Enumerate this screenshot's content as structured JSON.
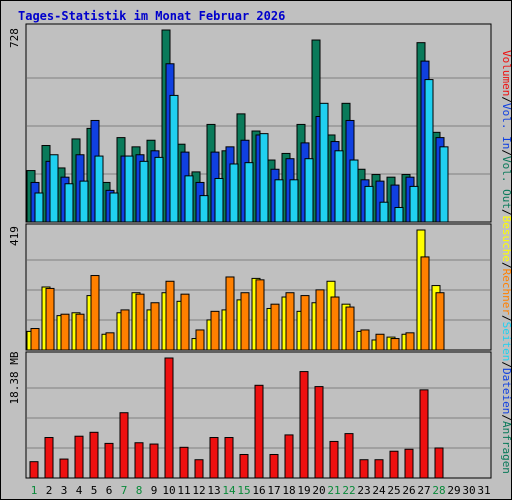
{
  "title": "Tages-Statistik im Monat Februar 2026",
  "colors": {
    "background": "#c0c0c0",
    "border": "#000000",
    "title_blue": "#0000cc",
    "hits": "#0a7a5a",
    "files": "#1040e0",
    "pages": "#20d0f0",
    "visits": "#ffff00",
    "sites": "#ff8000",
    "traffic": "#ee1010",
    "weekend_label": "#0a8a3a"
  },
  "chart_data": [
    {
      "type": "bar",
      "panel": "top",
      "ymax_label": "728",
      "categories": [
        "1",
        "2",
        "3",
        "4",
        "5",
        "6",
        "7",
        "8",
        "9",
        "10",
        "11",
        "12",
        "13",
        "14",
        "15",
        "16",
        "17",
        "18",
        "19",
        "20",
        "21",
        "22",
        "23",
        "24",
        "25",
        "26",
        "27",
        "28",
        "29",
        "30",
        "31"
      ],
      "series": [
        {
          "name": "Anfragen",
          "values": [
            195,
            290,
            205,
            315,
            355,
            150,
            320,
            285,
            310,
            728,
            295,
            190,
            370,
            270,
            410,
            345,
            235,
            260,
            370,
            690,
            330,
            450,
            200,
            180,
            170,
            180,
            680,
            340,
            0,
            0,
            0
          ]
        },
        {
          "name": "Dateien",
          "values": [
            150,
            230,
            170,
            255,
            385,
            120,
            250,
            255,
            270,
            600,
            265,
            150,
            265,
            285,
            310,
            330,
            200,
            240,
            300,
            400,
            305,
            385,
            160,
            155,
            140,
            170,
            610,
            320,
            0,
            0,
            0
          ]
        },
        {
          "name": "Seiten",
          "values": [
            110,
            255,
            145,
            155,
            250,
            110,
            250,
            230,
            245,
            480,
            175,
            100,
            165,
            220,
            225,
            335,
            160,
            160,
            240,
            450,
            270,
            235,
            135,
            75,
            55,
            135,
            540,
            285,
            0,
            0,
            0
          ]
        }
      ],
      "legend_right": [
        "Seiten",
        "Dateien",
        "Anfragen"
      ]
    },
    {
      "type": "bar",
      "panel": "middle",
      "ymax_label": "419",
      "categories": [
        "1",
        "2",
        "3",
        "4",
        "5",
        "6",
        "7",
        "8",
        "9",
        "10",
        "11",
        "12",
        "13",
        "14",
        "15",
        "16",
        "17",
        "18",
        "19",
        "20",
        "21",
        "22",
        "23",
        "24",
        "25",
        "26",
        "27",
        "28",
        "29",
        "30",
        "31"
      ],
      "series": [
        {
          "name": "Besuche",
          "values": [
            65,
            220,
            120,
            130,
            190,
            55,
            130,
            200,
            140,
            200,
            170,
            40,
            105,
            140,
            175,
            250,
            145,
            185,
            135,
            165,
            240,
            160,
            65,
            35,
            45,
            55,
            419,
            225,
            0,
            0,
            0
          ]
        },
        {
          "name": "Rechner",
          "values": [
            75,
            215,
            125,
            125,
            260,
            60,
            140,
            195,
            165,
            240,
            195,
            70,
            135,
            255,
            200,
            245,
            160,
            200,
            190,
            210,
            185,
            150,
            70,
            55,
            40,
            60,
            325,
            200,
            0,
            0,
            0
          ]
        }
      ],
      "legend_right": [
        "Vol. Out",
        "Rechner",
        "Besuche"
      ]
    },
    {
      "type": "bar",
      "panel": "bottom",
      "ymax_label": "18.38 MB",
      "categories": [
        "1",
        "2",
        "3",
        "4",
        "5",
        "6",
        "7",
        "8",
        "9",
        "10",
        "11",
        "12",
        "13",
        "14",
        "15",
        "16",
        "17",
        "18",
        "19",
        "20",
        "21",
        "22",
        "23",
        "24",
        "25",
        "26",
        "27",
        "28",
        "29",
        "30",
        "31"
      ],
      "series": [
        {
          "name": "Volumen",
          "values": [
            2.5,
            6.2,
            2.9,
            6.4,
            7.0,
            5.3,
            10.0,
            5.4,
            5.2,
            18.38,
            4.7,
            2.8,
            6.2,
            6.2,
            3.6,
            14.2,
            3.6,
            6.6,
            16.3,
            14.0,
            5.6,
            6.8,
            2.8,
            2.8,
            4.1,
            4.4,
            13.5,
            4.6,
            0,
            0,
            0
          ]
        }
      ],
      "legend_right": [
        "Vol. In",
        "Volumen"
      ]
    }
  ],
  "x_labels": [
    {
      "t": "1",
      "we": true
    },
    {
      "t": "2",
      "we": false
    },
    {
      "t": "3",
      "we": false
    },
    {
      "t": "4",
      "we": false
    },
    {
      "t": "5",
      "we": false
    },
    {
      "t": "6",
      "we": false
    },
    {
      "t": "7",
      "we": true
    },
    {
      "t": "8",
      "we": true
    },
    {
      "t": "9",
      "we": false
    },
    {
      "t": "10",
      "we": false
    },
    {
      "t": "11",
      "we": false
    },
    {
      "t": "12",
      "we": false
    },
    {
      "t": "13",
      "we": false
    },
    {
      "t": "14",
      "we": true
    },
    {
      "t": "15",
      "we": true
    },
    {
      "t": "16",
      "we": false
    },
    {
      "t": "17",
      "we": false
    },
    {
      "t": "18",
      "we": false
    },
    {
      "t": "19",
      "we": false
    },
    {
      "t": "20",
      "we": false
    },
    {
      "t": "21",
      "we": true
    },
    {
      "t": "22",
      "we": true
    },
    {
      "t": "23",
      "we": false
    },
    {
      "t": "24",
      "we": false
    },
    {
      "t": "25",
      "we": false
    },
    {
      "t": "26",
      "we": false
    },
    {
      "t": "27",
      "we": false
    },
    {
      "t": "28",
      "we": true
    },
    {
      "t": "29",
      "we": false
    },
    {
      "t": "30",
      "we": false
    },
    {
      "t": "31",
      "we": false
    }
  ],
  "right_legend": [
    {
      "text": "Volumen",
      "color": "#ee1010"
    },
    {
      "text": "/",
      "color": "#000000"
    },
    {
      "text": "Vol. In",
      "color": "#1040e0"
    },
    {
      "text": "/",
      "color": "#000000"
    },
    {
      "text": "Vol. Out",
      "color": "#0a7a5a"
    },
    {
      "text": "/",
      "color": "#000000"
    },
    {
      "text": "Besuche",
      "color": "#ffff00"
    },
    {
      "text": "/",
      "color": "#000000"
    },
    {
      "text": "Rechner",
      "color": "#ff8000"
    },
    {
      "text": "/",
      "color": "#000000"
    },
    {
      "text": "Seiten",
      "color": "#20d0f0"
    },
    {
      "text": "/",
      "color": "#000000"
    },
    {
      "text": "Dateien",
      "color": "#1040e0"
    },
    {
      "text": "/",
      "color": "#000000"
    },
    {
      "text": "Anfragen",
      "color": "#0a7a5a"
    }
  ]
}
